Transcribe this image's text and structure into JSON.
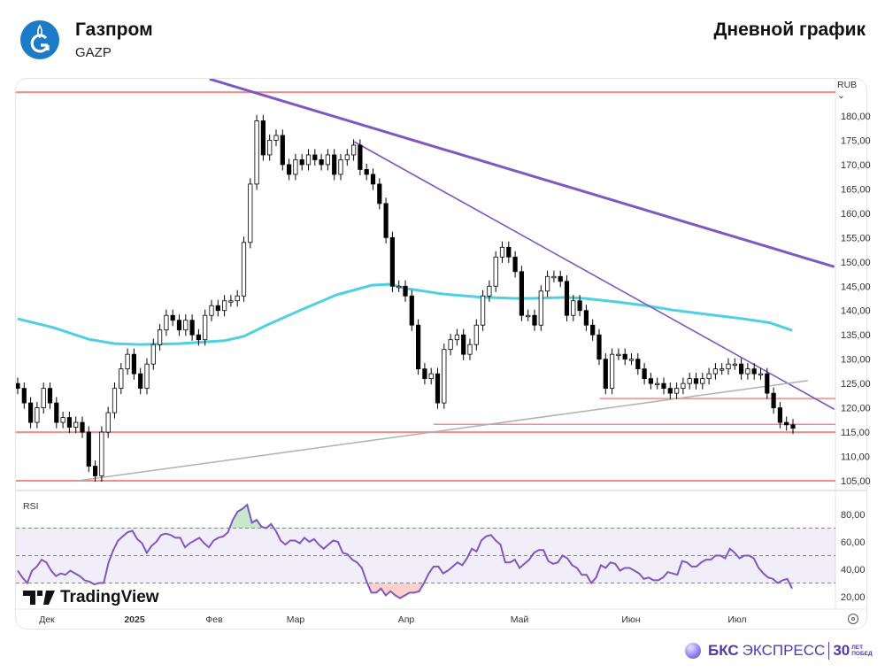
{
  "header": {
    "company": "Газпром",
    "ticker": "GAZP",
    "chart_type": "Дневной график"
  },
  "currency": "RUB",
  "rsi_label": "RSI",
  "watermark": "TradingView",
  "time_labels": [
    "Дек",
    "2025",
    "Фев",
    "Мар",
    "Апр",
    "Май",
    "Июн",
    "Июл"
  ],
  "footer": {
    "brand_bold": "БКС",
    "brand": "ЭКСПРЕСС",
    "years": "30",
    "years_text_1": "ЛЕТ",
    "years_text_2": "ПОБЕД"
  },
  "colors": {
    "up": "#ffffff",
    "down": "#000000",
    "ma": "#4dd0e1",
    "trend": "#7e57c2",
    "level": "#f28b8b",
    "support": "#b0b0b0",
    "rsi": "#7e57c2",
    "logo": "#1b7bc8"
  },
  "chart_data": {
    "type": "candlestick",
    "price_axis": {
      "min": 105,
      "max": 180,
      "step": 5,
      "ylim": [
        101,
        189
      ]
    },
    "close": [
      124,
      121,
      117,
      120,
      124,
      121,
      117,
      118,
      116,
      117,
      115,
      108,
      106,
      115,
      119,
      124,
      128,
      131,
      127,
      124,
      129,
      133,
      136,
      139,
      138,
      136,
      138,
      135,
      134,
      139,
      141,
      140,
      142,
      142,
      143,
      154,
      166,
      179,
      172,
      175,
      176,
      170,
      168,
      171,
      170,
      172,
      171,
      170,
      172,
      168,
      171,
      172,
      174,
      169,
      168,
      166,
      162,
      155,
      145,
      145,
      143,
      137,
      128,
      126,
      127,
      121,
      132,
      134,
      135,
      131,
      133,
      137,
      143,
      145,
      151,
      153,
      151,
      148,
      139,
      139,
      137,
      144,
      147,
      147,
      146,
      139,
      142,
      140,
      137,
      135,
      130,
      124,
      131,
      131,
      130,
      130,
      128,
      126,
      125,
      125,
      124,
      123,
      124,
      125,
      126,
      125,
      126,
      127,
      128,
      128,
      129,
      129,
      127,
      128,
      127,
      127,
      123,
      120,
      117,
      116.5,
      115.8
    ],
    "ma200": [
      [
        0,
        138.3
      ],
      [
        5.5,
        136.5
      ],
      [
        11,
        134.1
      ],
      [
        15,
        133.2
      ],
      [
        19,
        133.0
      ],
      [
        25,
        133.2
      ],
      [
        32,
        133.8
      ],
      [
        35,
        134.7
      ],
      [
        38.4,
        136.9
      ],
      [
        43.8,
        140.1
      ],
      [
        49.3,
        143.2
      ],
      [
        54.8,
        145.2
      ],
      [
        57.5,
        145.4
      ],
      [
        60.3,
        144.5
      ],
      [
        65.8,
        143.4
      ],
      [
        71.2,
        142.8
      ],
      [
        76.7,
        142.5
      ],
      [
        79.5,
        142.5
      ],
      [
        84.9,
        142.7
      ],
      [
        87.7,
        142.5
      ],
      [
        93.2,
        141.7
      ],
      [
        97.3,
        141.0
      ],
      [
        101.4,
        140.1
      ],
      [
        106.8,
        139.2
      ],
      [
        112.3,
        138.3
      ],
      [
        116.4,
        137.5
      ],
      [
        119.9,
        135.9
      ]
    ],
    "trendlines": [
      {
        "name": "major-resistance",
        "from": [
          29.7,
          187.6
        ],
        "to": [
          126.4,
          149.0
        ]
      },
      {
        "name": "minor-resistance",
        "from": [
          52.1,
          174.7
        ],
        "to": [
          126.4,
          119.7
        ]
      },
      {
        "name": "support",
        "from": [
          9.3,
          105.0
        ],
        "to": [
          122.3,
          125.6
        ]
      }
    ],
    "levels": [
      {
        "price": 184.9,
        "from": null
      },
      {
        "price": 115.0,
        "from": null
      },
      {
        "price": 105.0,
        "from": null
      },
      {
        "price": 116.6,
        "from": 64.4
      },
      {
        "price": 121.9,
        "from": 90.1
      }
    ],
    "rsi": {
      "axis": [
        20,
        40,
        60,
        80
      ],
      "bands": [
        70,
        50,
        30
      ],
      "ylim": [
        15,
        92
      ],
      "values": [
        39,
        34,
        30,
        39,
        42,
        47,
        45,
        39,
        35,
        37,
        36,
        39,
        37,
        35,
        32,
        31,
        29,
        30,
        30,
        45,
        54,
        61,
        64,
        67,
        68,
        62,
        59,
        52,
        57,
        60,
        65,
        66,
        65,
        63,
        63,
        56,
        59,
        61,
        63,
        59,
        56,
        61,
        63,
        64,
        67,
        76,
        82,
        84,
        87,
        74,
        76,
        71,
        70,
        73,
        68,
        61,
        58,
        61,
        61,
        59,
        63,
        60,
        62,
        58,
        55,
        58,
        61,
        60,
        52,
        51,
        47,
        45,
        41,
        31,
        23,
        23,
        26,
        21,
        24,
        21,
        19,
        21,
        23,
        23,
        24,
        30,
        37,
        42,
        42,
        37,
        39,
        42,
        45,
        43,
        48,
        55,
        53,
        61,
        64,
        65,
        61,
        58,
        45,
        45,
        47,
        41,
        44,
        47,
        52,
        54,
        54,
        46,
        44,
        45,
        50,
        48,
        43,
        41,
        36,
        36,
        30,
        34,
        43,
        41,
        45,
        44,
        39,
        41,
        41,
        39,
        37,
        33,
        34,
        32,
        32,
        34,
        38,
        37,
        36,
        46,
        45,
        42,
        42,
        45,
        47,
        47,
        50,
        50,
        48,
        55,
        52,
        48,
        50,
        50,
        48,
        41,
        37,
        34,
        33,
        30,
        32,
        33,
        26
      ]
    }
  }
}
